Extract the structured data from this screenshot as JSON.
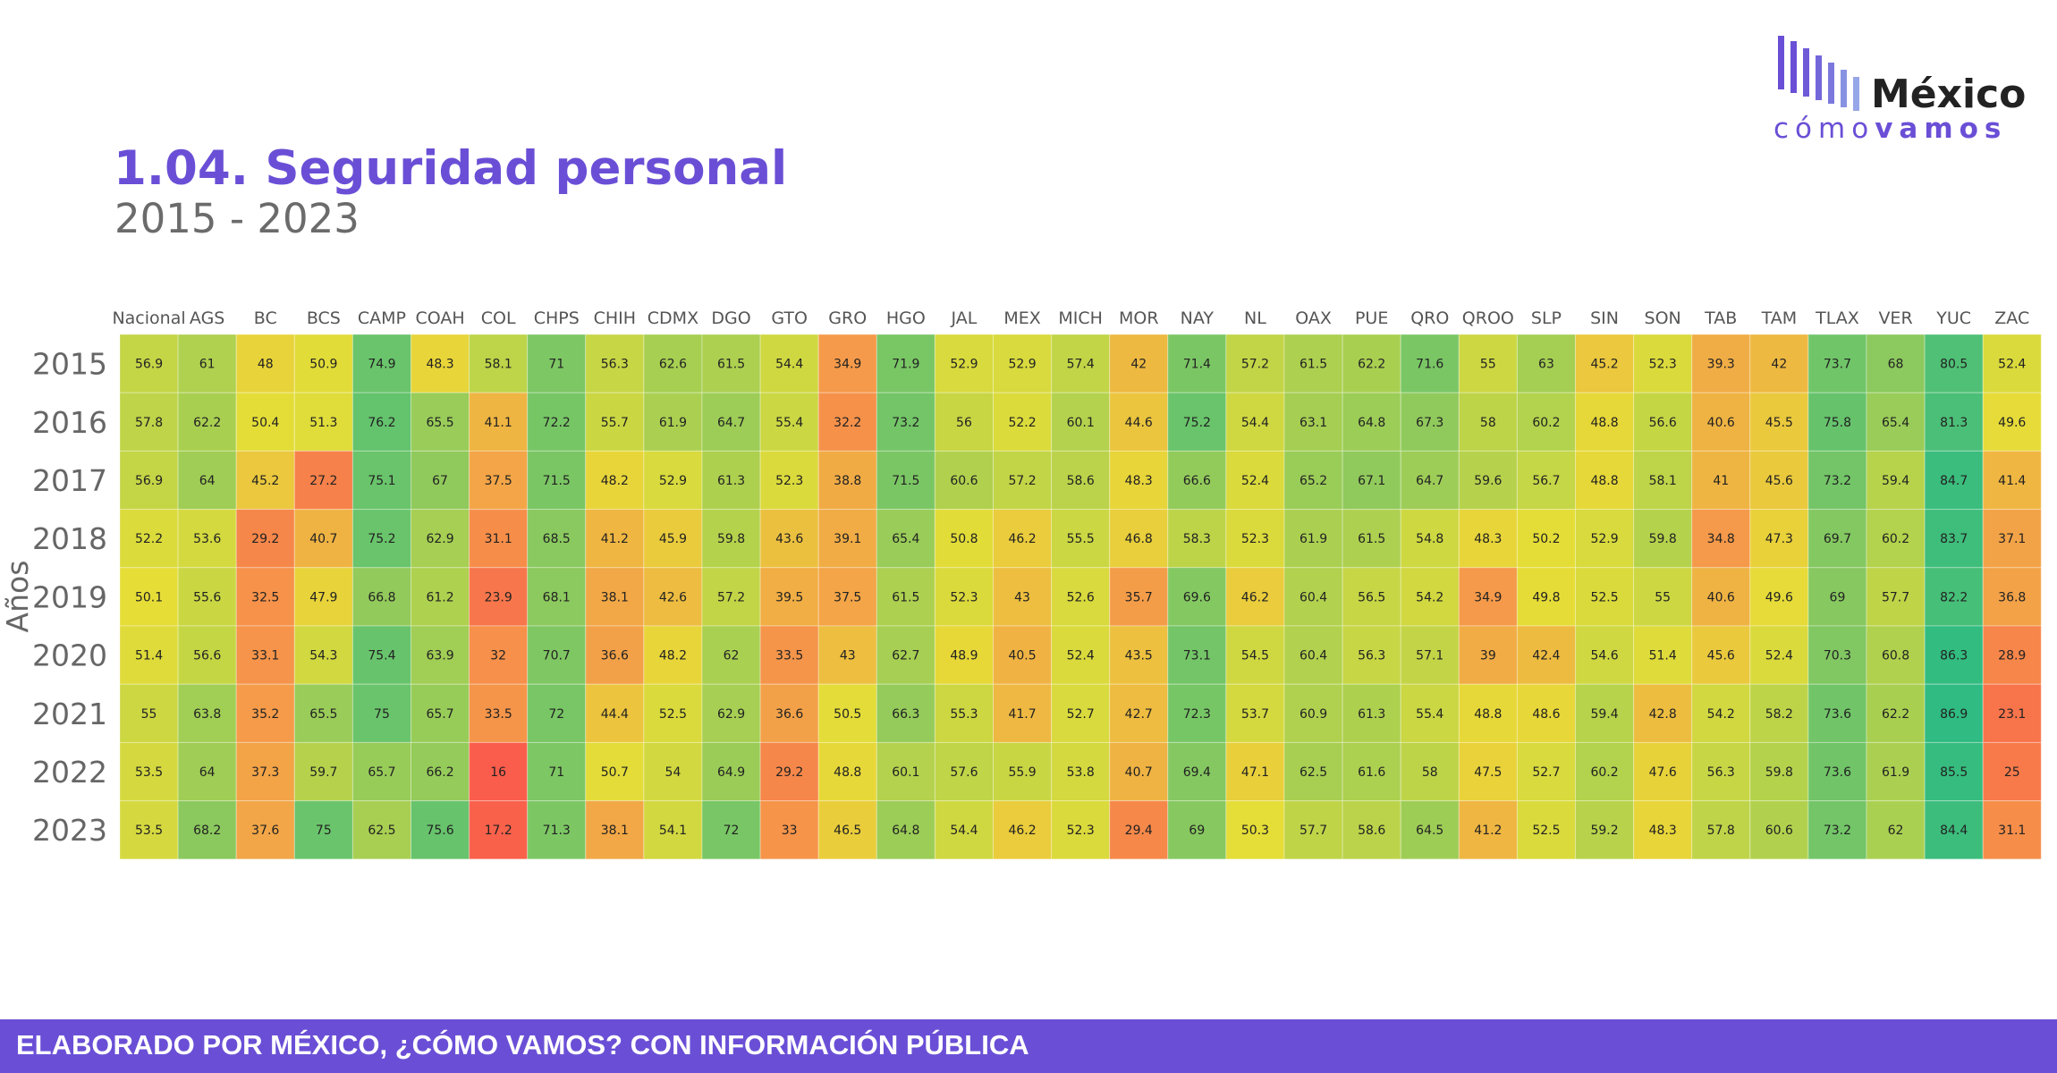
{
  "header": {
    "title": "1.04. Seguridad personal",
    "subtitle": "2015 - 2023"
  },
  "logo": {
    "line1": "México",
    "line2_light": "cómo",
    "line2_bold": "vamos"
  },
  "footer": {
    "text": "ELABORADO POR MÉXICO, ¿CÓMO VAMOS? CON INFORMACIÓN PÚBLICA"
  },
  "colors": {
    "brand": "#6a4fd6",
    "footer_bg": "#6a4fd6",
    "title": "#6a4fd6",
    "subtitle": "#6b6b6b",
    "scale_low": "#fa5a4b",
    "scale_mid": "#e6dd37",
    "scale_high": "#2fbb81"
  },
  "chart_data": {
    "type": "heatmap",
    "title": "",
    "xlabel": "",
    "ylabel": "Años",
    "x": [
      "Nacional",
      "AGS",
      "BC",
      "BCS",
      "CAMP",
      "COAH",
      "COL",
      "CHPS",
      "CHIH",
      "CDMX",
      "DGO",
      "GTO",
      "GRO",
      "HGO",
      "JAL",
      "MEX",
      "MICH",
      "MOR",
      "NAY",
      "NL",
      "OAX",
      "PUE",
      "QRO",
      "QROO",
      "SLP",
      "SIN",
      "SON",
      "TAB",
      "TAM",
      "TLAX",
      "VER",
      "YUC",
      "ZAC"
    ],
    "y": [
      "2015",
      "2016",
      "2017",
      "2018",
      "2019",
      "2020",
      "2021",
      "2022",
      "2023"
    ],
    "values": [
      [
        56.9,
        61,
        48,
        50.9,
        74.9,
        48.3,
        58.1,
        71,
        56.3,
        62.6,
        61.5,
        54.4,
        34.9,
        71.9,
        52.9,
        52.9,
        57.4,
        42,
        71.4,
        57.2,
        61.5,
        62.2,
        71.6,
        55,
        63,
        45.2,
        52.3,
        39.3,
        42,
        73.7,
        68,
        80.5,
        52.4
      ],
      [
        57.8,
        62.2,
        50.4,
        51.3,
        76.2,
        65.5,
        41.1,
        72.2,
        55.7,
        61.9,
        64.7,
        55.4,
        32.2,
        73.2,
        56,
        52.2,
        60.1,
        44.6,
        75.2,
        54.4,
        63.1,
        64.8,
        67.3,
        58,
        60.2,
        48.8,
        56.6,
        40.6,
        45.5,
        75.8,
        65.4,
        81.3,
        49.6
      ],
      [
        56.9,
        64,
        45.2,
        27.2,
        75.1,
        67,
        37.5,
        71.5,
        48.2,
        52.9,
        61.3,
        52.3,
        38.8,
        71.5,
        60.6,
        57.2,
        58.6,
        48.3,
        66.6,
        52.4,
        65.2,
        67.1,
        64.7,
        59.6,
        56.7,
        48.8,
        58.1,
        41,
        45.6,
        73.2,
        59.4,
        84.7,
        41.4
      ],
      [
        52.2,
        53.6,
        29.2,
        40.7,
        75.2,
        62.9,
        31.1,
        68.5,
        41.2,
        45.9,
        59.8,
        43.6,
        39.1,
        65.4,
        50.8,
        46.2,
        55.5,
        46.8,
        58.3,
        52.3,
        61.9,
        61.5,
        54.8,
        48.3,
        50.2,
        52.9,
        59.8,
        34.8,
        47.3,
        69.7,
        60.2,
        83.7,
        37.1
      ],
      [
        50.1,
        55.6,
        32.5,
        47.9,
        66.8,
        61.2,
        23.9,
        68.1,
        38.1,
        42.6,
        57.2,
        39.5,
        37.5,
        61.5,
        52.3,
        43,
        52.6,
        35.7,
        69.6,
        46.2,
        60.4,
        56.5,
        54.2,
        34.9,
        49.8,
        52.5,
        55,
        40.6,
        49.6,
        69,
        57.7,
        82.2,
        36.8
      ],
      [
        51.4,
        56.6,
        33.1,
        54.3,
        75.4,
        63.9,
        32,
        70.7,
        36.6,
        48.2,
        62,
        33.5,
        43,
        62.7,
        48.9,
        40.5,
        52.4,
        43.5,
        73.1,
        54.5,
        60.4,
        56.3,
        57.1,
        39,
        42.4,
        54.6,
        51.4,
        45.6,
        52.4,
        70.3,
        60.8,
        86.3,
        28.9
      ],
      [
        55,
        63.8,
        35.2,
        65.5,
        75,
        65.7,
        33.5,
        72,
        44.4,
        52.5,
        62.9,
        36.6,
        50.5,
        66.3,
        55.3,
        41.7,
        52.7,
        42.7,
        72.3,
        53.7,
        60.9,
        61.3,
        55.4,
        48.8,
        48.6,
        59.4,
        42.8,
        54.2,
        58.2,
        73.6,
        62.2,
        86.9,
        23.1
      ],
      [
        53.5,
        64,
        37.3,
        59.7,
        65.7,
        66.2,
        16,
        71,
        50.7,
        54,
        64.9,
        29.2,
        48.8,
        60.1,
        57.6,
        55.9,
        53.8,
        40.7,
        69.4,
        47.1,
        62.5,
        61.6,
        58,
        47.5,
        52.7,
        60.2,
        47.6,
        56.3,
        59.8,
        73.6,
        61.9,
        85.5,
        25
      ],
      [
        53.5,
        68.2,
        37.6,
        75,
        62.5,
        75.6,
        17.2,
        71.3,
        38.1,
        54.1,
        72,
        33,
        46.5,
        64.8,
        54.4,
        46.2,
        52.3,
        29.4,
        69,
        50.3,
        57.7,
        58.6,
        64.5,
        41.2,
        52.5,
        59.2,
        48.3,
        57.8,
        60.6,
        73.2,
        62,
        84.4,
        31.1
      ]
    ]
  }
}
